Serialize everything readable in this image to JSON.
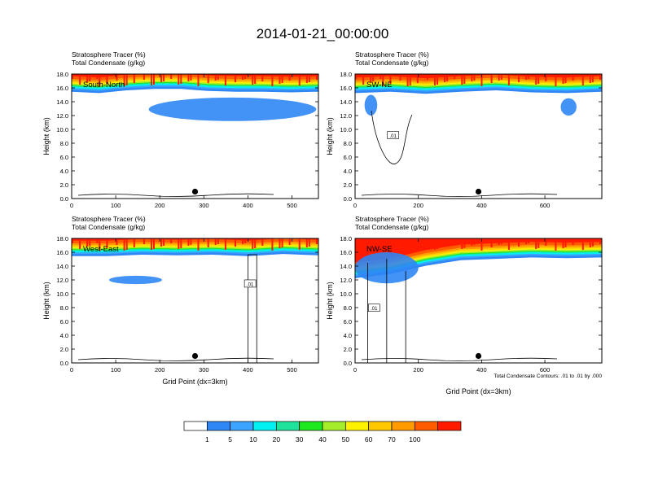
{
  "title": "2014-01-21_00:00:00",
  "colors": {
    "levels": [
      "#ffffff",
      "#2f86f5",
      "#3aa4ff",
      "#00f0f0",
      "#1fe39a",
      "#1ee81e",
      "#a5ec2a",
      "#fff200",
      "#ffc800",
      "#ff9a00",
      "#ff5c00",
      "#ff1a00"
    ],
    "contour": "#000000"
  },
  "chart_data": [
    {
      "type": "heatmap",
      "title": "Stratosphere Tracer   (%)",
      "subtitle": "Total Condensate   (g/kg)",
      "panel_label": "South-North",
      "ylabel": "Height (km)",
      "xlabel": "",
      "xlim": [
        0,
        560
      ],
      "ylim": [
        0,
        18
      ],
      "xticks": [
        "0",
        "100",
        "200",
        "300",
        "400",
        "500"
      ],
      "yticks": [
        "0.0",
        "2.0",
        "4.0",
        "6.0",
        "8.0",
        "10.0",
        "12.0",
        "14.0",
        "16.0",
        "18.0"
      ],
      "marker": {
        "x": 280,
        "y": 1.0
      },
      "tracer_base_km": [
        15.6,
        15.4,
        15.8,
        16.0,
        16.0,
        15.7,
        15.6,
        15.6,
        15.5,
        15.6
      ],
      "cloud_patches": [
        {
          "x": [
            175,
            555
          ],
          "y": [
            11.2,
            14.6
          ]
        }
      ]
    },
    {
      "type": "heatmap",
      "title": "Stratosphere Tracer   (%)",
      "subtitle": "Total Condensate   (g/kg)",
      "panel_label": "SW-NE",
      "ylabel": "Height (km)",
      "xlabel": "",
      "xlim": [
        0,
        780
      ],
      "ylim": [
        0,
        18
      ],
      "xticks": [
        "0",
        "200",
        "400",
        "600"
      ],
      "yticks": [
        "0.0",
        "2.0",
        "4.0",
        "6.0",
        "8.0",
        "10.0",
        "12.0",
        "14.0",
        "16.0",
        "18.0"
      ],
      "marker": {
        "x": 390,
        "y": 1.0
      },
      "contour_label": ".01",
      "tracer_base_km": [
        15.4,
        15.6,
        15.3,
        15.6,
        15.8,
        15.5,
        15.4,
        15.6
      ],
      "cloud_patches": [
        {
          "x": [
            30,
            70
          ],
          "y": [
            12.0,
            15.0
          ]
        },
        {
          "x": [
            650,
            700
          ],
          "y": [
            12.0,
            14.5
          ]
        }
      ]
    },
    {
      "type": "heatmap",
      "title": "Stratosphere Tracer   (%)",
      "subtitle": "Total Condensate   (g/kg)",
      "panel_label": "West-East",
      "ylabel": "Height (km)",
      "xlabel": "Grid Point (dx=3km)",
      "xlim": [
        0,
        560
      ],
      "ylim": [
        0,
        18
      ],
      "xticks": [
        "0",
        "100",
        "200",
        "300",
        "400",
        "500"
      ],
      "yticks": [
        "0.0",
        "2.0",
        "4.0",
        "6.0",
        "8.0",
        "10.0",
        "12.0",
        "14.0",
        "16.0",
        "18.0"
      ],
      "marker": {
        "x": 280,
        "y": 1.0
      },
      "contour_label": ".01",
      "tracer_base_km": [
        15.6,
        15.6,
        15.8,
        15.7,
        15.8,
        15.6,
        15.9,
        15.7
      ],
      "cloud_patches": [
        {
          "x": [
            85,
            205
          ],
          "y": [
            11.4,
            12.6
          ]
        }
      ]
    },
    {
      "type": "heatmap",
      "title": "Stratosphere Tracer   (%)",
      "subtitle": "Total Condensate   (g/kg)",
      "panel_label": "NW-SE",
      "ylabel": "Height (km)",
      "xlabel": "Grid Point (dx=3km)",
      "xlim": [
        0,
        780
      ],
      "ylim": [
        0,
        18
      ],
      "xticks": [
        "0",
        "200",
        "400",
        "600"
      ],
      "yticks": [
        "0.0",
        "2.0",
        "4.0",
        "6.0",
        "8.0",
        "10.0",
        "12.0",
        "14.0",
        "16.0",
        "18.0"
      ],
      "marker": {
        "x": 390,
        "y": 1.0
      },
      "contour_label": ".01",
      "tracer_base_km": [
        12.4,
        13.0,
        14.2,
        15.0,
        15.2,
        15.4,
        15.3,
        15.4
      ],
      "cloud_patches": [
        {
          "x": [
            0,
            200
          ],
          "y": [
            11.5,
            16.0
          ]
        }
      ],
      "footnote": "Total Condensate Contours: .01 to .01 by .000"
    }
  ],
  "colorbar": {
    "labels": [
      "1",
      "5",
      "10",
      "20",
      "30",
      "40",
      "50",
      "60",
      "70",
      "100"
    ]
  }
}
